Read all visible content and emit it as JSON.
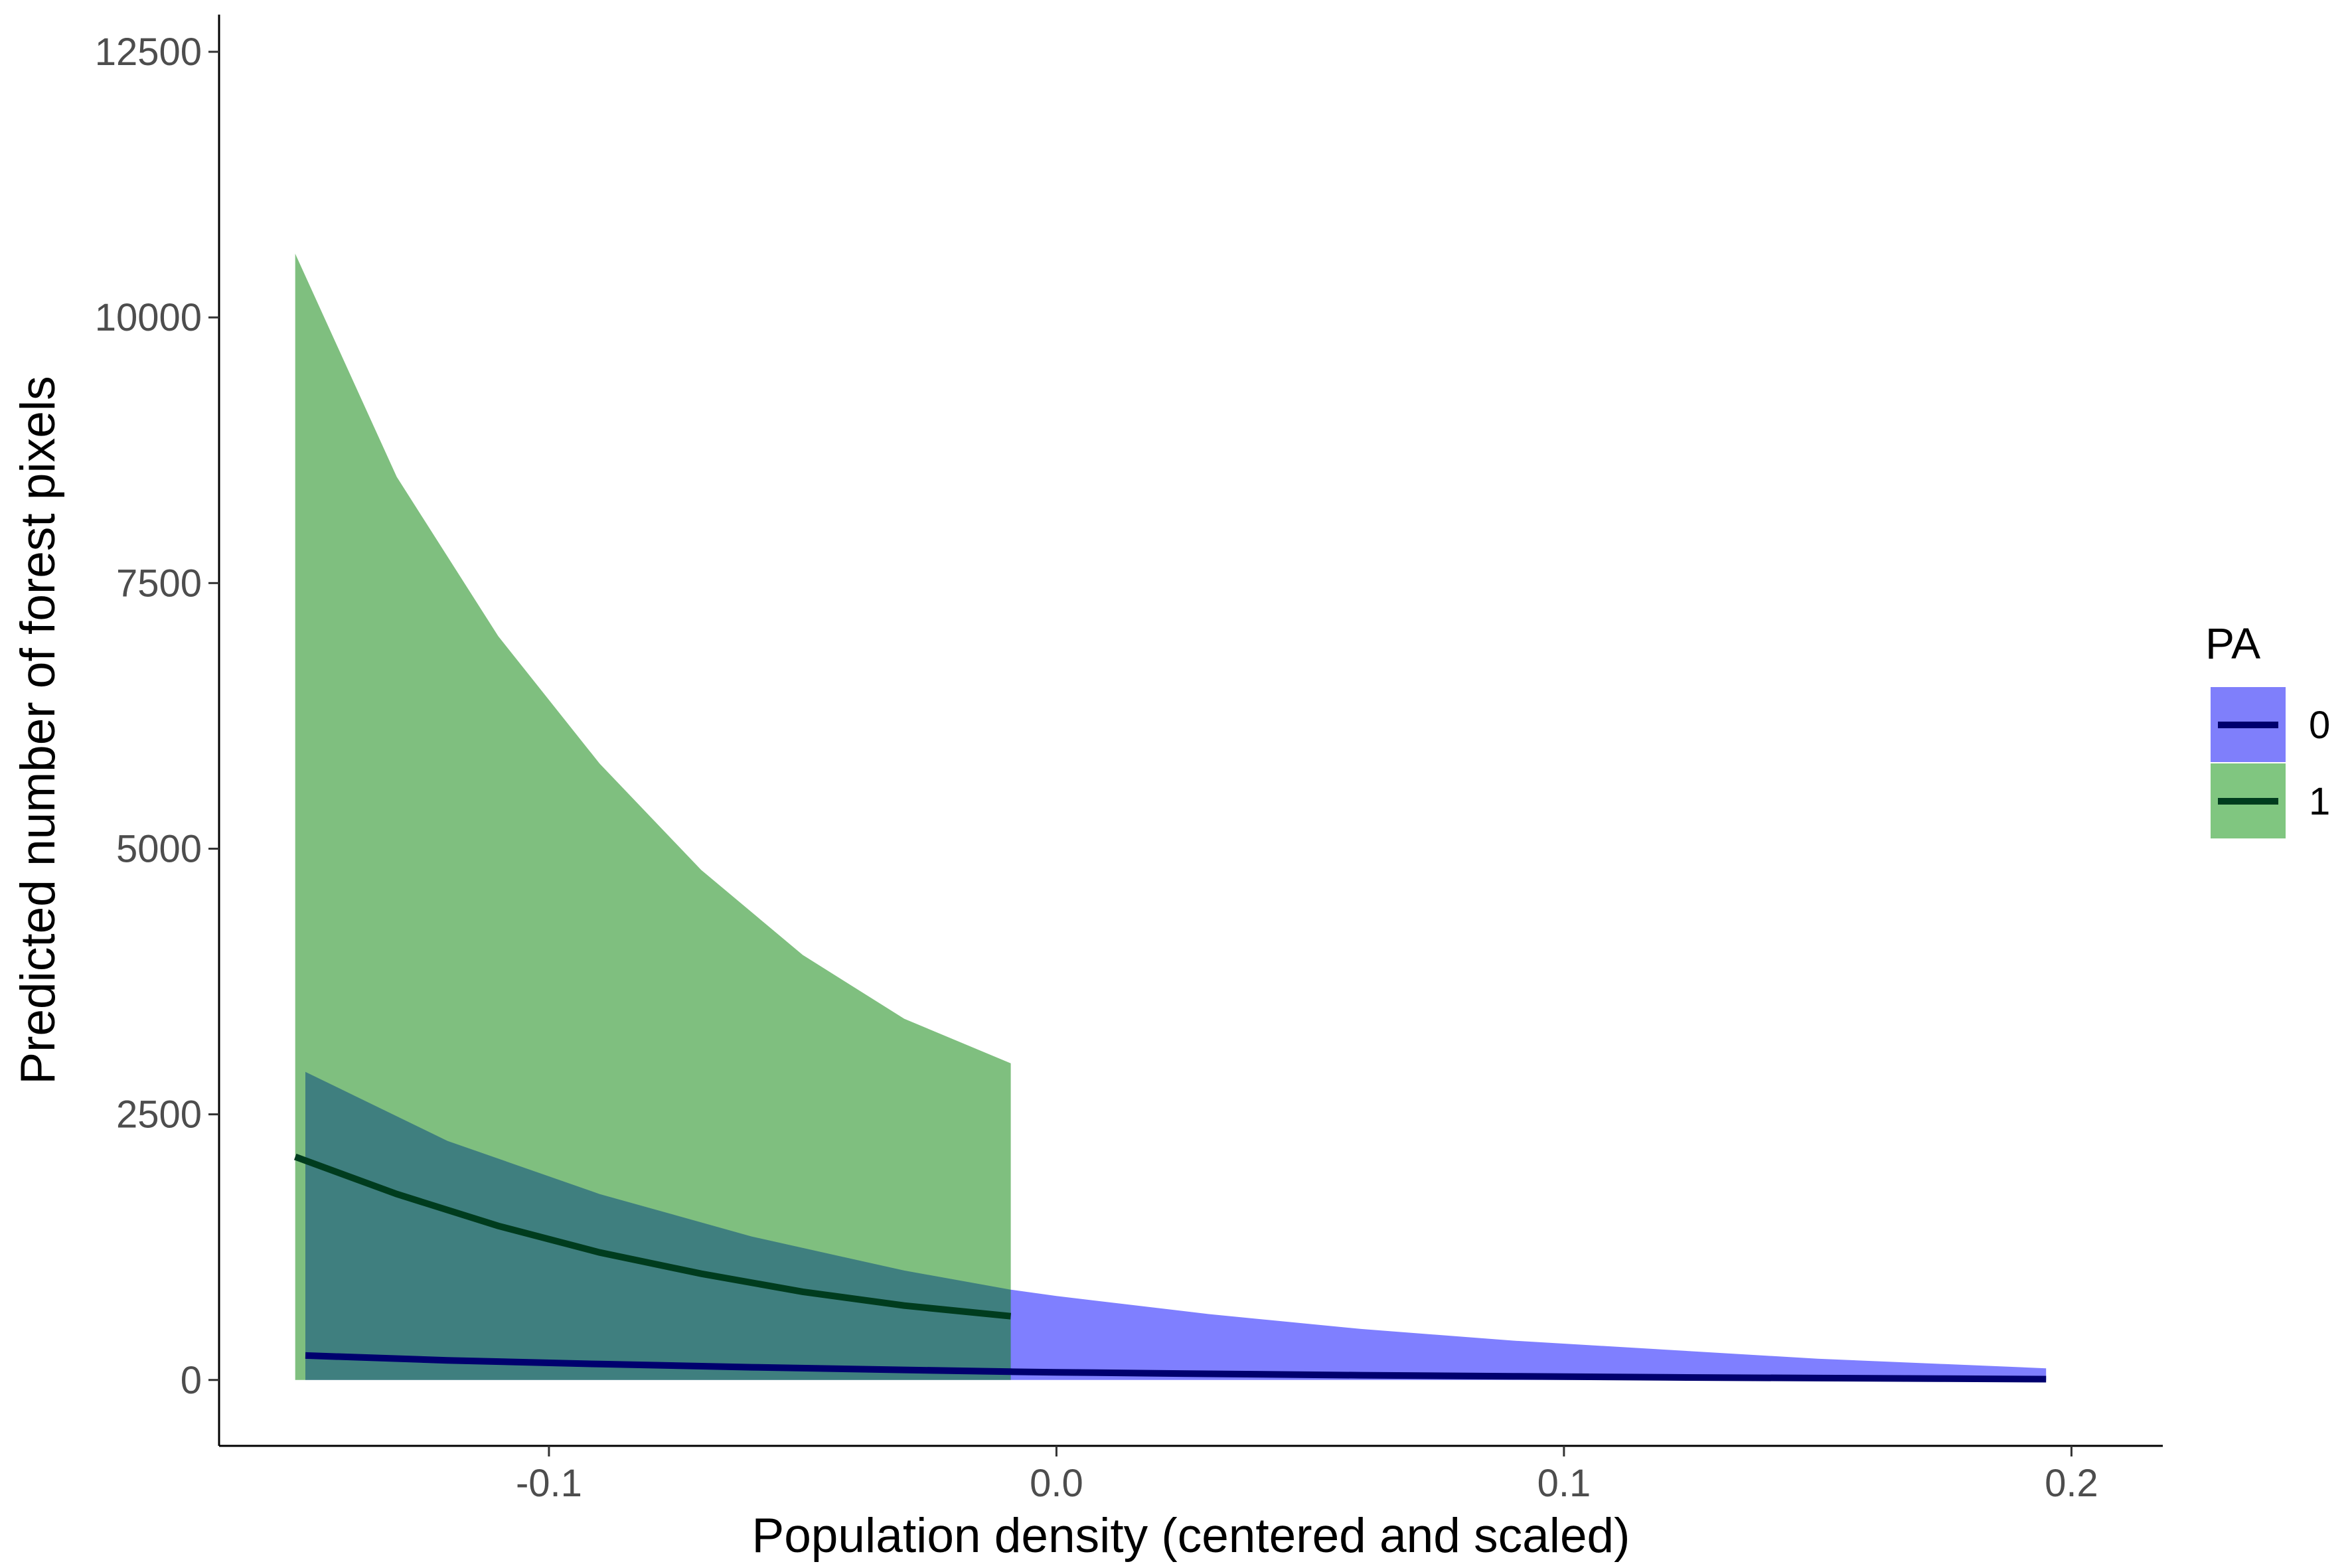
{
  "chart_data": {
    "type": "area",
    "xlabel": "Population density (centered and scaled)",
    "ylabel": "Predicted number of forest pixels",
    "xlim": [
      -0.165,
      0.218
    ],
    "ylim": [
      -620,
      12850
    ],
    "x_ticks": [
      -0.1,
      0.0,
      0.1,
      0.2
    ],
    "x_tick_labels": [
      "-0.1",
      "0.0",
      "0.1",
      "0.2"
    ],
    "y_ticks": [
      0,
      2500,
      5000,
      7500,
      10000,
      12500
    ],
    "y_tick_labels": [
      "0",
      "2500",
      "5000",
      "7500",
      "10000",
      "12500"
    ],
    "grid": false,
    "legend": {
      "title": "PA",
      "position": "right",
      "entries": [
        {
          "label": "0",
          "fill": "#7f7ffb",
          "line": "#00006e"
        },
        {
          "label": "1",
          "fill": "#80c680",
          "line": "#003c1e"
        }
      ]
    },
    "series": [
      {
        "name": "0",
        "fill_color": "#0000ff",
        "fill_opacity": 0.5,
        "line_color": "#00006e",
        "x": [
          -0.148,
          -0.12,
          -0.09,
          -0.06,
          -0.03,
          -0.009,
          0.0,
          0.03,
          0.06,
          0.09,
          0.12,
          0.15,
          0.175,
          0.195
        ],
        "y": [
          230,
          185,
          150,
          120,
          95,
          78,
          72,
          58,
          45,
          35,
          25,
          18,
          12,
          8
        ],
        "lower": [
          0,
          0,
          0,
          0,
          0,
          0,
          0,
          0,
          0,
          0,
          0,
          0,
          0,
          0
        ],
        "upper": [
          2900,
          2250,
          1750,
          1350,
          1030,
          850,
          790,
          620,
          480,
          370,
          285,
          200,
          150,
          110
        ]
      },
      {
        "name": "1",
        "fill_color": "#008000",
        "fill_opacity": 0.5,
        "line_color": "#003c1e",
        "x": [
          -0.15,
          -0.13,
          -0.11,
          -0.09,
          -0.07,
          -0.05,
          -0.03,
          -0.009
        ],
        "y": [
          2100,
          1750,
          1450,
          1200,
          1000,
          830,
          700,
          600
        ],
        "lower": [
          0,
          0,
          0,
          0,
          0,
          0,
          0,
          0
        ],
        "upper": [
          10600,
          8500,
          7000,
          5800,
          4800,
          4000,
          3400,
          2980
        ]
      }
    ]
  }
}
